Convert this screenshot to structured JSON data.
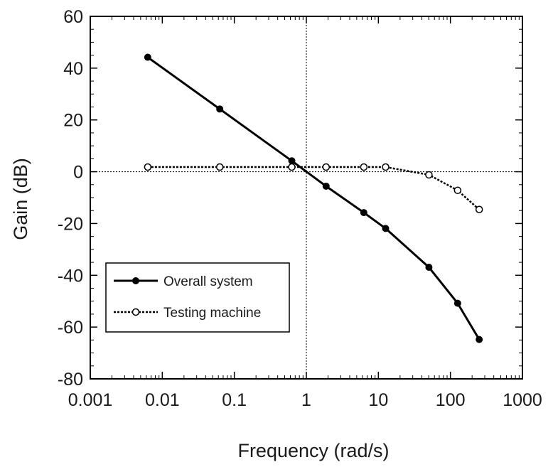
{
  "chart_data": {
    "type": "line",
    "xlabel": "Frequency (rad/s)",
    "ylabel": "Gain (dB)",
    "xscale": "log",
    "xlim": [
      0.001,
      1000
    ],
    "ylim": [
      -80,
      60
    ],
    "x_ticks": [
      0.001,
      0.01,
      0.1,
      1,
      10,
      100,
      1000
    ],
    "x_tick_labels": [
      "0.001",
      "0.01",
      "0.1",
      "1",
      "10",
      "100",
      "1000"
    ],
    "y_ticks": [
      -80,
      -60,
      -40,
      -20,
      0,
      20,
      40,
      60
    ],
    "y_tick_labels": [
      "-80",
      "-60",
      "-40",
      "-20",
      "0",
      "20",
      "40",
      "60"
    ],
    "reference_lines": {
      "x": 1,
      "y": 0,
      "style": "dotted"
    },
    "grid": false,
    "legend_position": "bottom-left",
    "series": [
      {
        "name": "Overall system",
        "line": "solid",
        "marker": "filled-circle",
        "color": "#000000",
        "x": [
          0.00628,
          0.0628,
          0.628,
          1.88,
          6.28,
          12.6,
          50.3,
          126,
          251
        ],
        "y": [
          44.2,
          24.2,
          4.2,
          -5.6,
          -15.8,
          -21.9,
          -36.9,
          -50.8,
          -64.8
        ]
      },
      {
        "name": "Testing machine",
        "line": "dotted",
        "marker": "open-circle",
        "color": "#000000",
        "x": [
          0.00628,
          0.0628,
          0.628,
          1.88,
          6.28,
          12.6,
          50.3,
          126,
          251
        ],
        "y": [
          1.8,
          1.8,
          1.8,
          1.8,
          1.8,
          1.8,
          -1.2,
          -7.2,
          -14.6
        ]
      }
    ]
  }
}
